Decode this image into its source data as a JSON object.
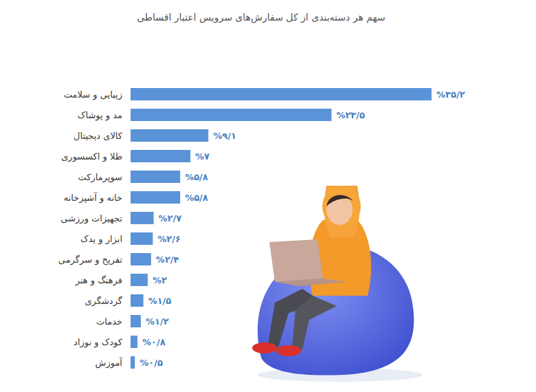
{
  "chart_data": {
    "type": "bar",
    "orientation": "horizontal",
    "title": "سهم هر دسته‌بندی از کل سفارش‌های سرویس اعتبار اقساطی",
    "categories": [
      "زیبایی و سلامت",
      "مد و پوشاک",
      "کالای دیجیتال",
      "طلا و اکسسوری",
      "سوپرمارکت",
      "خانه و آشپزخانه",
      "تجهیزات ورزشی",
      "ابزار و یدک",
      "تفریح و سرگرمی",
      "فرهنگ و هنر",
      "گردشگری",
      "خدمات",
      "کودک و نوزاد",
      "آموزش"
    ],
    "values": [
      35.2,
      23.5,
      9.1,
      7,
      5.8,
      5.8,
      2.7,
      2.6,
      2.4,
      2,
      1.5,
      1.2,
      0.8,
      0.5
    ],
    "value_labels": [
      "%۳۵/۲",
      "%۲۳/۵",
      "%۹/۱",
      "%۷",
      "%۵/۸",
      "%۵/۸",
      "%۲/۷",
      "%۲/۶",
      "%۲/۴",
      "%۲",
      "%۱/۵",
      "%۱/۲",
      "%۰/۸",
      "%۰/۵"
    ],
    "color": "#5a93d7",
    "xlim": [
      0,
      35.2
    ],
    "data_labels": true,
    "tick_labels": "y",
    "grid": false
  }
}
